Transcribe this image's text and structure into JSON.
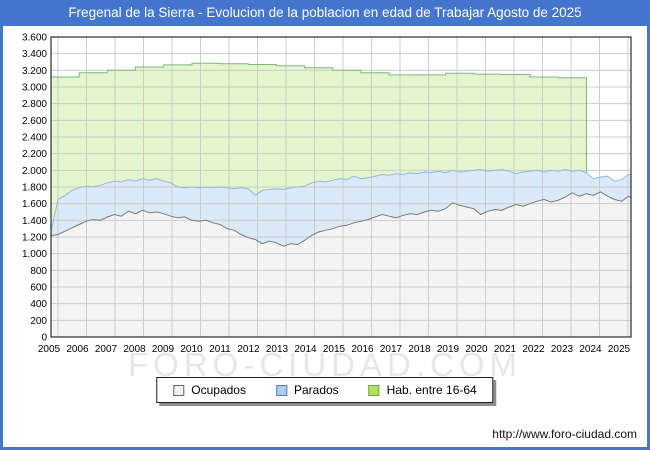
{
  "title": "Fregenal de la Sierra - Evolucion de la poblacion en edad de Trabajar Agosto de 2025",
  "watermark": "FORO-CIUDAD.COM",
  "footer": {
    "url": "http://www.foro-ciudad.com"
  },
  "colors": {
    "frame_blue": "#4576cd",
    "title_text": "#ffffff",
    "grid": "#cccccc",
    "plot_border": "#000000",
    "axis_text": "#000000",
    "watermark": "#e7e7e7"
  },
  "legend": {
    "items": [
      {
        "label": "Ocupados",
        "swatch_fill": "#f0f0f0",
        "swatch_border": "#666666"
      },
      {
        "label": "Parados",
        "swatch_fill": "#aecdee",
        "swatch_border": "#4f7cba"
      },
      {
        "label": "Hab. entre 16-64",
        "swatch_fill": "#b4e065",
        "swatch_border": "#72a33c"
      }
    ]
  },
  "chart_data": {
    "type": "area",
    "title": "Fregenal de la Sierra - Evolucion de la poblacion en edad de Trabajar Agosto de 2025",
    "grid": true,
    "legend_position": "bottom",
    "x_range": [
      2005,
      2025.583
    ],
    "y_axis": {
      "range": [
        0,
        3600
      ],
      "values": [
        0,
        200,
        400,
        600,
        800,
        1000,
        1200,
        1400,
        1600,
        1800,
        2000,
        2200,
        2400,
        2600,
        2800,
        3000,
        3200,
        3400,
        3600
      ],
      "labels": [
        "0",
        "200",
        "400",
        "600",
        "800",
        "1.000",
        "1.200",
        "1.400",
        "1.600",
        "1.800",
        "2.000",
        "2.200",
        "2.400",
        "2.600",
        "2.800",
        "3.000",
        "3.200",
        "3.400",
        "3.600"
      ]
    },
    "x_axis": {
      "years": [
        "2005",
        "2006",
        "2007",
        "2008",
        "2009",
        "2010",
        "2011",
        "2012",
        "2013",
        "2014",
        "2015",
        "2016",
        "2017",
        "2018",
        "2019",
        "2020",
        "2021",
        "2022",
        "2023",
        "2024",
        "2025"
      ]
    },
    "x": [
      2005.0,
      2005.25,
      2005.5,
      2005.75,
      2006.0,
      2006.25,
      2006.5,
      2006.75,
      2007.0,
      2007.25,
      2007.5,
      2007.75,
      2008.0,
      2008.25,
      2008.5,
      2008.75,
      2009.0,
      2009.25,
      2009.5,
      2009.75,
      2010.0,
      2010.25,
      2010.5,
      2010.75,
      2011.0,
      2011.25,
      2011.5,
      2011.75,
      2012.0,
      2012.25,
      2012.5,
      2012.75,
      2013.0,
      2013.25,
      2013.5,
      2013.75,
      2014.0,
      2014.25,
      2014.5,
      2014.75,
      2015.0,
      2015.25,
      2015.5,
      2015.75,
      2016.0,
      2016.25,
      2016.5,
      2016.75,
      2017.0,
      2017.25,
      2017.5,
      2017.75,
      2018.0,
      2018.25,
      2018.5,
      2018.75,
      2019.0,
      2019.25,
      2019.5,
      2019.75,
      2020.0,
      2020.25,
      2020.5,
      2020.75,
      2021.0,
      2021.25,
      2021.5,
      2021.75,
      2022.0,
      2022.25,
      2022.5,
      2022.75,
      2023.0,
      2023.25,
      2023.5,
      2023.75,
      2024.0,
      2024.25,
      2024.5,
      2024.75,
      2025.0,
      2025.25,
      2025.5,
      2025.583
    ],
    "series": [
      {
        "name": "Ocupados",
        "fill": "#f4f4f4",
        "stroke": "#7a7a7a",
        "values": [
          1215,
          1230,
          1270,
          1310,
          1350,
          1390,
          1410,
          1400,
          1440,
          1470,
          1450,
          1510,
          1480,
          1520,
          1490,
          1500,
          1480,
          1450,
          1430,
          1440,
          1400,
          1390,
          1400,
          1370,
          1350,
          1300,
          1280,
          1230,
          1190,
          1170,
          1120,
          1150,
          1130,
          1090,
          1120,
          1110,
          1160,
          1220,
          1260,
          1280,
          1300,
          1330,
          1340,
          1370,
          1390,
          1410,
          1440,
          1470,
          1450,
          1430,
          1460,
          1480,
          1470,
          1500,
          1520,
          1510,
          1540,
          1610,
          1580,
          1560,
          1540,
          1470,
          1510,
          1530,
          1520,
          1560,
          1590,
          1570,
          1600,
          1630,
          1650,
          1620,
          1640,
          1680,
          1730,
          1690,
          1720,
          1700,
          1740,
          1690,
          1650,
          1630,
          1690,
          1670
        ]
      },
      {
        "name": "Parados",
        "note": "stacked on top of Ocupados (band between Ocupados line and Ocupados+Parados line)",
        "fill": "#dbeaf8",
        "stroke": "#94b7e2",
        "values": [
          55,
          420,
          430,
          450,
          440,
          420,
          390,
          420,
          410,
          400,
          410,
          380,
          390,
          380,
          390,
          400,
          390,
          400,
          370,
          350,
          400,
          400,
          400,
          420,
          450,
          490,
          500,
          560,
          590,
          530,
          640,
          620,
          650,
          680,
          670,
          690,
          650,
          630,
          610,
          580,
          580,
          570,
          550,
          560,
          510,
          500,
          490,
          480,
          490,
          530,
          490,
          490,
          490,
          480,
          450,
          480,
          430,
          390,
          400,
          430,
          460,
          540,
          480,
          470,
          490,
          430,
          370,
          410,
          390,
          370,
          330,
          380,
          350,
          330,
          260,
          310,
          250,
          200,
          180,
          240,
          220,
          260,
          260,
          280
        ]
      },
      {
        "name": "Hab. entre 16-64",
        "note": "annual stepped series; data ends at start of 2024, dropping to the Parados line",
        "fill": "#e4f6cd",
        "stroke": "#7fb77f",
        "step_years": [
          2005,
          2006,
          2007,
          2008,
          2009,
          2010,
          2011,
          2012,
          2013,
          2014,
          2015,
          2016,
          2017,
          2018,
          2019,
          2020,
          2021,
          2022,
          2023
        ],
        "step_values": [
          3120,
          3170,
          3200,
          3240,
          3265,
          3285,
          3280,
          3270,
          3255,
          3230,
          3200,
          3170,
          3145,
          3145,
          3165,
          3155,
          3150,
          3120,
          3110
        ],
        "data_ends": 2024
      }
    ]
  }
}
